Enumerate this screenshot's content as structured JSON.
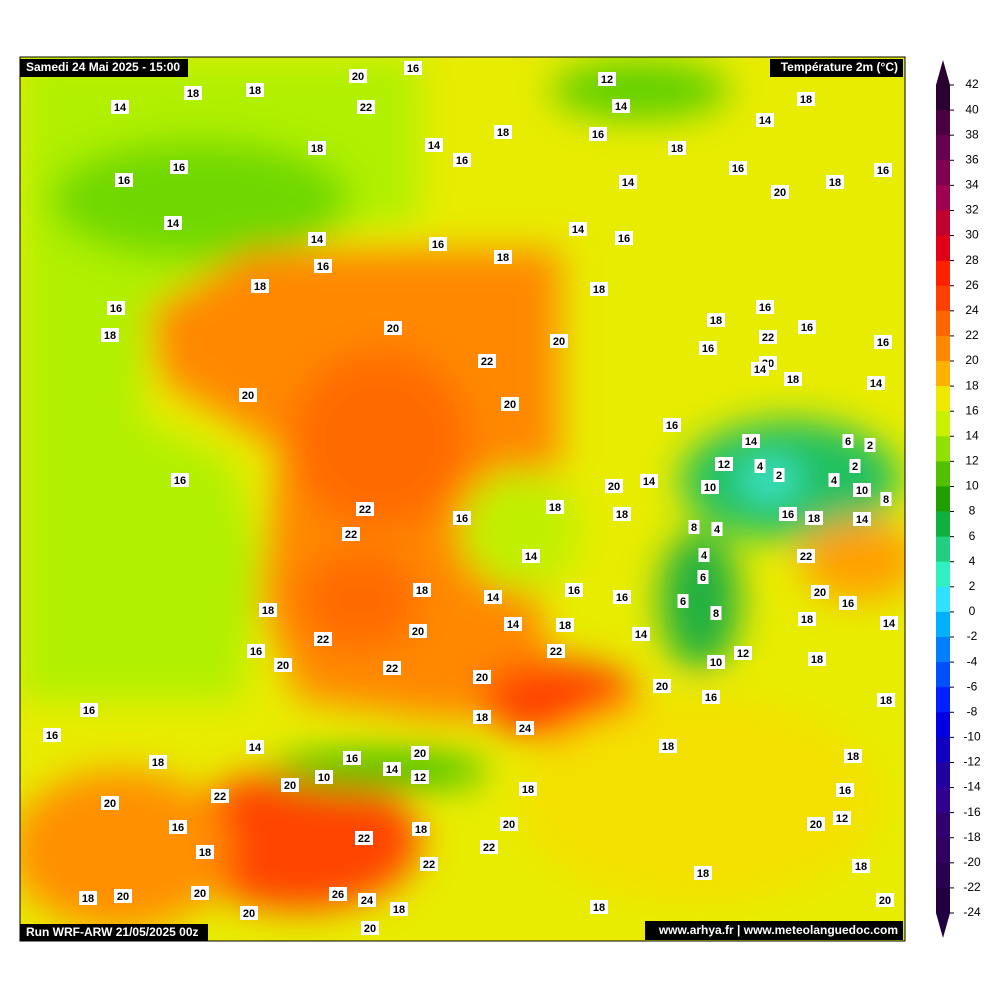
{
  "header": {
    "date": "Samedi 24 Mai 2025 - 15:00",
    "parameter": "Température 2m (°C)",
    "run": "Run WRF-ARW 21/05/2025 00z",
    "credits": "www.arhya.fr | www.meteolanguedoc.com"
  },
  "colorbar": {
    "ticks": [
      42,
      40,
      38,
      36,
      34,
      32,
      30,
      28,
      26,
      24,
      22,
      20,
      18,
      16,
      14,
      12,
      10,
      8,
      6,
      4,
      2,
      0,
      -2,
      -4,
      -6,
      -8,
      -10,
      -12,
      -14,
      -16,
      -18,
      -20,
      -22,
      -24
    ],
    "colors": [
      "#2a0030",
      "#4a0040",
      "#660050",
      "#80004f",
      "#a00050",
      "#c00030",
      "#e00018",
      "#ff2000",
      "#ff4000",
      "#ff6600",
      "#ff8800",
      "#ffb000",
      "#f0e800",
      "#c8f000",
      "#90e000",
      "#50c000",
      "#20a000",
      "#10b040",
      "#20d080",
      "#30f0c0",
      "#30e0ff",
      "#00b0ff",
      "#0080ff",
      "#0050ff",
      "#0020ff",
      "#0000e0",
      "#1000c0",
      "#2000a0",
      "#300090",
      "#300070",
      "#300060",
      "#280050",
      "#200040"
    ]
  },
  "map": {
    "labels": [
      14,
      18,
      18,
      20,
      16,
      22,
      12,
      14,
      18,
      14,
      18,
      16,
      18,
      14,
      16,
      18,
      16,
      16,
      14,
      16,
      20,
      18,
      16,
      14,
      14,
      14,
      16,
      16,
      18,
      16,
      18,
      18,
      16,
      18,
      16,
      18,
      16,
      20,
      22,
      20,
      16,
      16,
      22,
      20,
      14,
      18,
      14,
      20,
      20,
      16,
      14,
      6,
      2,
      12,
      4,
      2,
      2,
      16,
      20,
      14,
      10,
      4,
      10,
      8,
      22,
      18,
      18,
      16,
      16,
      18,
      14,
      22,
      8,
      4,
      14,
      4,
      22,
      6,
      18,
      16,
      14,
      16,
      6,
      20,
      16,
      18,
      8,
      14,
      18,
      18,
      14,
      20,
      14,
      22,
      16,
      22,
      12,
      10,
      18,
      20,
      22,
      20,
      20,
      16,
      18,
      16,
      18,
      24,
      16,
      14,
      18,
      20,
      18,
      18,
      16,
      14,
      10,
      12,
      20,
      18,
      16,
      20,
      22,
      12,
      20,
      20,
      16,
      18,
      22,
      22,
      18,
      22,
      18,
      18,
      26,
      24,
      18,
      20,
      20,
      18,
      20,
      18,
      20,
      20
    ]
  }
}
